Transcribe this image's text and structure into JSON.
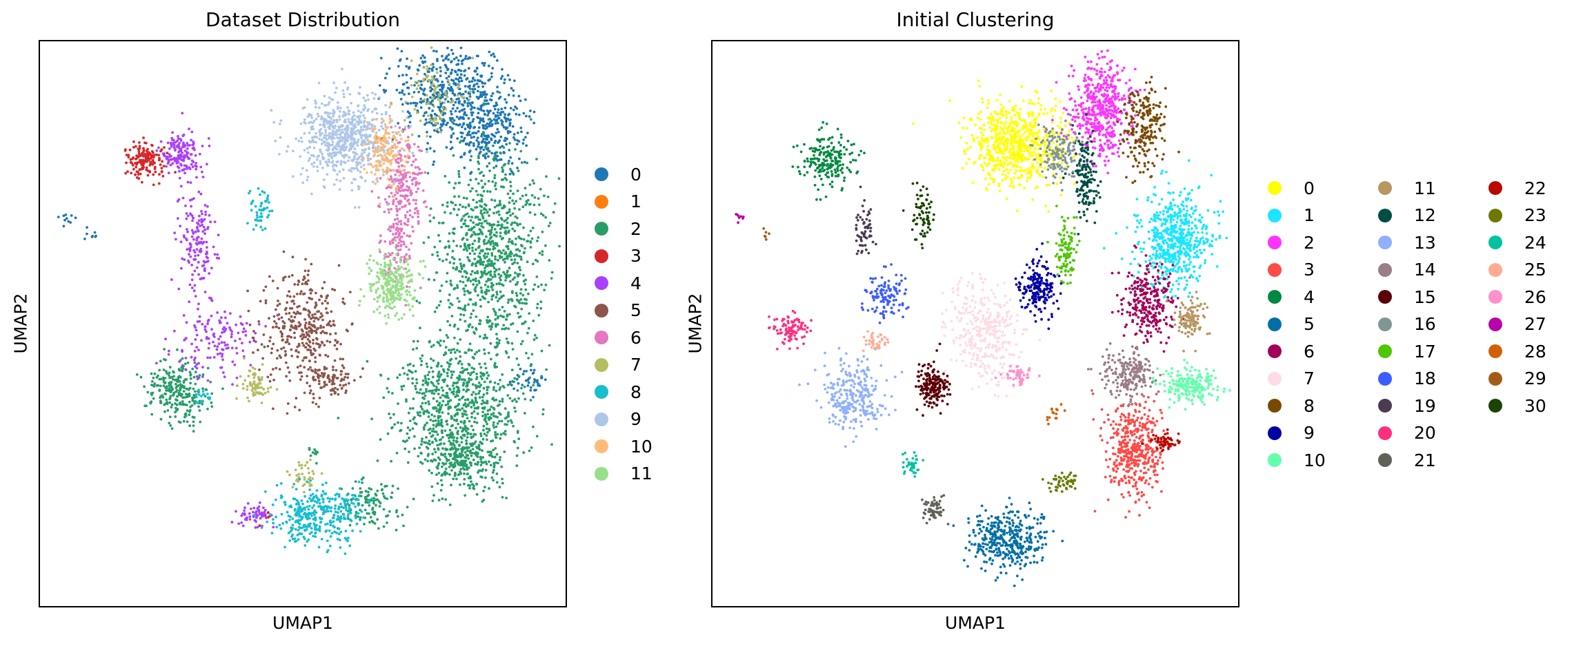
{
  "chart_data": [
    {
      "type": "scatter",
      "title": "Dataset Distribution",
      "xlabel": "UMAP1",
      "ylabel": "UMAP2",
      "xticks": [],
      "yticks": [],
      "grid": false,
      "legend_placement": "right, outside plot",
      "legend_title": "",
      "series": [
        {
          "name": "0",
          "color": "#1f77b4",
          "clusters": [
            [
              0.78,
              0.09,
              0.075,
              0.06,
              520
            ],
            [
              0.86,
              0.16,
              0.05,
              0.05,
              260
            ],
            [
              0.93,
              0.6,
              0.02,
              0.015,
              40
            ],
            [
              0.05,
              0.31,
              0.012,
              0.012,
              10
            ],
            [
              0.1,
              0.34,
              0.008,
              0.008,
              8
            ]
          ]
        },
        {
          "name": "1",
          "color": "#ff7f0e",
          "clusters": [
            [
              0.64,
              0.18,
              0.008,
              0.008,
              6
            ]
          ]
        },
        {
          "name": "2",
          "color": "#279e68",
          "clusters": [
            [
              0.86,
              0.38,
              0.07,
              0.12,
              900
            ],
            [
              0.79,
              0.64,
              0.08,
              0.07,
              700
            ],
            [
              0.81,
              0.74,
              0.05,
              0.04,
              300
            ],
            [
              0.63,
              0.82,
              0.04,
              0.03,
              120
            ],
            [
              0.26,
              0.62,
              0.04,
              0.035,
              260
            ],
            [
              0.52,
              0.73,
              0.01,
              0.01,
              10
            ]
          ]
        },
        {
          "name": "3",
          "color": "#d62728",
          "clusters": [
            [
              0.2,
              0.21,
              0.025,
              0.02,
              160
            ],
            [
              0.43,
              0.84,
              0.008,
              0.008,
              6
            ]
          ]
        },
        {
          "name": "4",
          "color": "#aa40fc",
          "clusters": [
            [
              0.27,
              0.2,
              0.025,
              0.025,
              160
            ],
            [
              0.3,
              0.35,
              0.025,
              0.06,
              160
            ],
            [
              0.34,
              0.53,
              0.06,
              0.04,
              140
            ],
            [
              0.41,
              0.84,
              0.025,
              0.015,
              60
            ]
          ]
        },
        {
          "name": "5",
          "color": "#8c564b",
          "clusters": [
            [
              0.5,
              0.51,
              0.05,
              0.07,
              380
            ],
            [
              0.56,
              0.6,
              0.03,
              0.02,
              80
            ]
          ]
        },
        {
          "name": "6",
          "color": "#e377c2",
          "clusters": [
            [
              0.69,
              0.25,
              0.025,
              0.06,
              220
            ],
            [
              0.68,
              0.36,
              0.02,
              0.05,
              110
            ]
          ]
        },
        {
          "name": "7",
          "color": "#b5bd61",
          "clusters": [
            [
              0.41,
              0.61,
              0.02,
              0.02,
              70
            ],
            [
              0.75,
              0.1,
              0.04,
              0.04,
              80
            ],
            [
              0.5,
              0.77,
              0.02,
              0.02,
              40
            ]
          ]
        },
        {
          "name": "8",
          "color": "#17becf",
          "clusters": [
            [
              0.52,
              0.84,
              0.05,
              0.035,
              320
            ],
            [
              0.42,
              0.3,
              0.015,
              0.03,
              50
            ],
            [
              0.31,
              0.63,
              0.012,
              0.012,
              20
            ],
            [
              0.59,
              0.83,
              0.02,
              0.02,
              40
            ]
          ]
        },
        {
          "name": "9",
          "color": "#aec7e8",
          "clusters": [
            [
              0.58,
              0.17,
              0.06,
              0.05,
              700
            ]
          ]
        },
        {
          "name": "10",
          "color": "#ffbb78",
          "clusters": [
            [
              0.66,
              0.2,
              0.025,
              0.04,
              150
            ]
          ]
        },
        {
          "name": "11",
          "color": "#98df8a",
          "clusters": [
            [
              0.67,
              0.43,
              0.03,
              0.035,
              260
            ]
          ]
        }
      ]
    },
    {
      "type": "scatter",
      "title": "Initial Clustering",
      "xlabel": "UMAP1",
      "ylabel": "UMAP2",
      "xticks": [],
      "yticks": [],
      "grid": false,
      "legend_placement": "right, outside plot",
      "legend_title": "",
      "series": [
        {
          "name": "0",
          "color": "#ffff00",
          "clusters": [
            [
              0.58,
              0.18,
              0.06,
              0.05,
              700
            ]
          ]
        },
        {
          "name": "1",
          "color": "#1ce6ff",
          "clusters": [
            [
              0.88,
              0.35,
              0.045,
              0.055,
              600
            ]
          ]
        },
        {
          "name": "2",
          "color": "#ff34ff",
          "clusters": [
            [
              0.74,
              0.12,
              0.04,
              0.06,
              500
            ]
          ]
        },
        {
          "name": "3",
          "color": "#ff4a46",
          "clusters": [
            [
              0.8,
              0.72,
              0.035,
              0.06,
              450
            ]
          ]
        },
        {
          "name": "4",
          "color": "#008941",
          "clusters": [
            [
              0.22,
              0.21,
              0.035,
              0.03,
              200
            ]
          ]
        },
        {
          "name": "5",
          "color": "#006fa6",
          "clusters": [
            [
              0.56,
              0.88,
              0.05,
              0.035,
              380
            ]
          ]
        },
        {
          "name": "6",
          "color": "#a30059",
          "clusters": [
            [
              0.83,
              0.46,
              0.03,
              0.045,
              280
            ]
          ]
        },
        {
          "name": "7",
          "color": "#ffdbe5",
          "clusters": [
            [
              0.52,
              0.51,
              0.05,
              0.06,
              350
            ]
          ]
        },
        {
          "name": "8",
          "color": "#7a4900",
          "clusters": [
            [
              0.82,
              0.15,
              0.025,
              0.05,
              220
            ]
          ]
        },
        {
          "name": "9",
          "color": "#0000a6",
          "clusters": [
            [
              0.62,
              0.44,
              0.025,
              0.03,
              200
            ]
          ]
        },
        {
          "name": "10",
          "color": "#63ffac",
          "clusters": [
            [
              0.91,
              0.61,
              0.04,
              0.02,
              200
            ]
          ]
        },
        {
          "name": "11",
          "color": "#b79762",
          "clusters": [
            [
              0.91,
              0.49,
              0.02,
              0.025,
              120
            ]
          ]
        },
        {
          "name": "12",
          "color": "#004d43",
          "clusters": [
            [
              0.71,
              0.24,
              0.015,
              0.05,
              150
            ]
          ]
        },
        {
          "name": "13",
          "color": "#8fb0ff",
          "clusters": [
            [
              0.27,
              0.63,
              0.04,
              0.04,
              280
            ]
          ]
        },
        {
          "name": "14",
          "color": "#997d87",
          "clusters": [
            [
              0.79,
              0.59,
              0.035,
              0.03,
              200
            ]
          ]
        },
        {
          "name": "15",
          "color": "#5a0007",
          "clusters": [
            [
              0.42,
              0.61,
              0.02,
              0.025,
              180
            ]
          ]
        },
        {
          "name": "16",
          "color": "#809693",
          "clusters": [
            [
              0.66,
              0.2,
              0.025,
              0.03,
              150
            ]
          ]
        },
        {
          "name": "17",
          "color": "#4fc601",
          "clusters": [
            [
              0.67,
              0.37,
              0.015,
              0.04,
              100
            ]
          ]
        },
        {
          "name": "18",
          "color": "#3b5dff",
          "clusters": [
            [
              0.33,
              0.45,
              0.025,
              0.025,
              120
            ]
          ]
        },
        {
          "name": "19",
          "color": "#4a3b53",
          "clusters": [
            [
              0.29,
              0.34,
              0.012,
              0.04,
              60
            ]
          ]
        },
        {
          "name": "20",
          "color": "#ff2f80",
          "clusters": [
            [
              0.15,
              0.51,
              0.02,
              0.018,
              100
            ]
          ]
        },
        {
          "name": "21",
          "color": "#61615a",
          "clusters": [
            [
              0.42,
              0.83,
              0.015,
              0.015,
              60
            ]
          ]
        },
        {
          "name": "22",
          "color": "#ba0900",
          "clusters": [
            [
              0.86,
              0.71,
              0.02,
              0.01,
              60
            ]
          ]
        },
        {
          "name": "23",
          "color": "#6b7900",
          "clusters": [
            [
              0.67,
              0.78,
              0.02,
              0.012,
              50
            ]
          ]
        },
        {
          "name": "24",
          "color": "#00c2a0",
          "clusters": [
            [
              0.38,
              0.75,
              0.015,
              0.012,
              40
            ]
          ]
        },
        {
          "name": "25",
          "color": "#ffaa92",
          "clusters": [
            [
              0.31,
              0.53,
              0.015,
              0.012,
              40
            ]
          ]
        },
        {
          "name": "26",
          "color": "#ff90c9",
          "clusters": [
            [
              0.58,
              0.59,
              0.02,
              0.01,
              50
            ]
          ]
        },
        {
          "name": "27",
          "color": "#b903aa",
          "clusters": [
            [
              0.05,
              0.31,
              0.008,
              0.008,
              8
            ]
          ]
        },
        {
          "name": "28",
          "color": "#d16100",
          "clusters": [
            [
              0.65,
              0.66,
              0.01,
              0.01,
              15
            ]
          ]
        },
        {
          "name": "29",
          "color": "#a25c1a",
          "clusters": [
            [
              0.1,
              0.34,
              0.006,
              0.006,
              6
            ]
          ]
        },
        {
          "name": "30",
          "color": "#1b4400",
          "clusters": [
            [
              0.4,
              0.31,
              0.015,
              0.03,
              70
            ]
          ]
        }
      ]
    }
  ]
}
